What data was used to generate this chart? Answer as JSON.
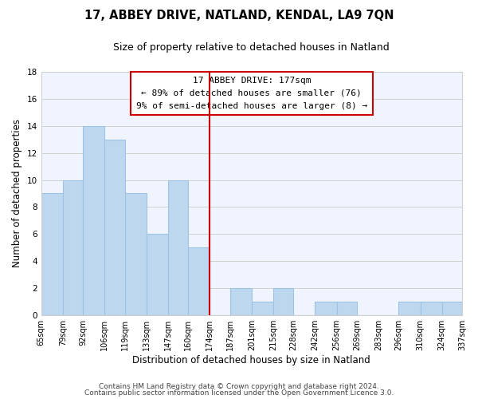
{
  "title": "17, ABBEY DRIVE, NATLAND, KENDAL, LA9 7QN",
  "subtitle": "Size of property relative to detached houses in Natland",
  "xlabel": "Distribution of detached houses by size in Natland",
  "ylabel": "Number of detached properties",
  "bar_edges": [
    65,
    79,
    92,
    106,
    119,
    133,
    147,
    160,
    174,
    187,
    201,
    215,
    228,
    242,
    256,
    269,
    283,
    296,
    310,
    324,
    337
  ],
  "bar_heights": [
    9,
    10,
    14,
    13,
    9,
    6,
    10,
    5,
    0,
    2,
    1,
    2,
    0,
    1,
    1,
    0,
    0,
    1,
    1,
    1
  ],
  "bar_color": "#bdd7ee",
  "bar_edge_color": "#9dc3e6",
  "bar_linewidth": 0.8,
  "vline_x": 174,
  "vline_color": "#cc0000",
  "annotation_title": "17 ABBEY DRIVE: 177sqm",
  "annotation_line1": "← 89% of detached houses are smaller (76)",
  "annotation_line2": "9% of semi-detached houses are larger (8) →",
  "tick_labels": [
    "65sqm",
    "79sqm",
    "92sqm",
    "106sqm",
    "119sqm",
    "133sqm",
    "147sqm",
    "160sqm",
    "174sqm",
    "187sqm",
    "201sqm",
    "215sqm",
    "228sqm",
    "242sqm",
    "256sqm",
    "269sqm",
    "283sqm",
    "296sqm",
    "310sqm",
    "324sqm",
    "337sqm"
  ],
  "ylim": [
    0,
    18
  ],
  "yticks": [
    0,
    2,
    4,
    6,
    8,
    10,
    12,
    14,
    16,
    18
  ],
  "footnote1": "Contains HM Land Registry data © Crown copyright and database right 2024.",
  "footnote2": "Contains public sector information licensed under the Open Government Licence 3.0.",
  "grid_color": "#d0d0d0",
  "bg_color": "#f0f4ff",
  "title_fontsize": 10.5,
  "subtitle_fontsize": 9,
  "tick_fontsize": 7,
  "ylabel_fontsize": 8.5,
  "xlabel_fontsize": 8.5,
  "footnote_fontsize": 6.5,
  "annot_fontsize": 8
}
